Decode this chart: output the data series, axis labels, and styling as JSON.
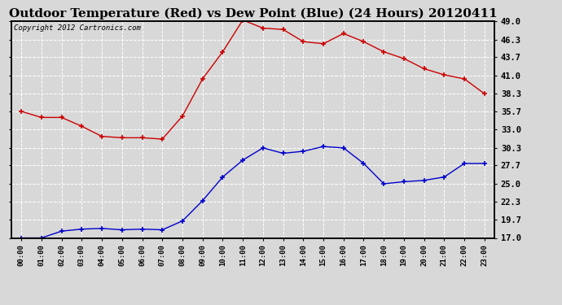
{
  "title": "Outdoor Temperature (Red) vs Dew Point (Blue) (24 Hours) 20120411",
  "copyright": "Copyright 2012 Cartronics.com",
  "x_labels": [
    "00:00",
    "01:00",
    "02:00",
    "03:00",
    "04:00",
    "05:00",
    "06:00",
    "07:00",
    "08:00",
    "09:00",
    "10:00",
    "11:00",
    "12:00",
    "13:00",
    "14:00",
    "15:00",
    "16:00",
    "17:00",
    "18:00",
    "19:00",
    "20:00",
    "21:00",
    "22:00",
    "23:00"
  ],
  "temp_red": [
    35.7,
    34.8,
    34.8,
    33.5,
    32.0,
    31.8,
    31.8,
    31.6,
    35.0,
    40.5,
    44.5,
    49.2,
    48.0,
    47.8,
    46.0,
    45.7,
    47.2,
    46.0,
    44.5,
    43.5,
    42.0,
    41.1,
    40.5,
    38.3
  ],
  "dew_blue": [
    17.0,
    17.0,
    18.0,
    18.3,
    18.4,
    18.2,
    18.3,
    18.2,
    19.5,
    22.5,
    26.0,
    28.5,
    30.3,
    29.5,
    29.8,
    30.5,
    30.3,
    28.0,
    25.0,
    25.3,
    25.5,
    26.0,
    28.0,
    28.0
  ],
  "ylim": [
    17.0,
    49.0
  ],
  "yticks": [
    17.0,
    19.7,
    22.3,
    25.0,
    27.7,
    30.3,
    33.0,
    35.7,
    38.3,
    41.0,
    43.7,
    46.3,
    49.0
  ],
  "bg_color": "#d8d8d8",
  "plot_bg": "#d8d8d8",
  "red_color": "#cc0000",
  "blue_color": "#0000cc",
  "grid_color": "#ffffff",
  "title_fontsize": 11,
  "copyright_fontsize": 6.5
}
